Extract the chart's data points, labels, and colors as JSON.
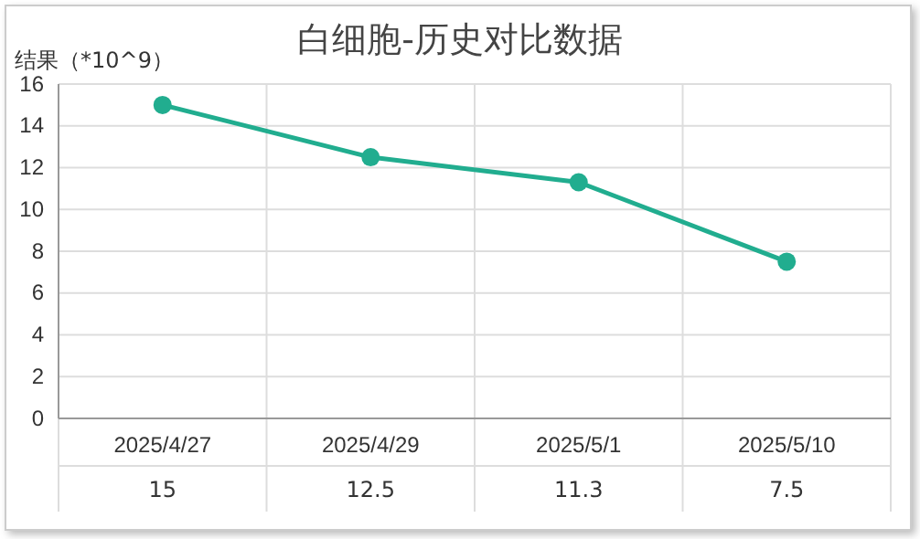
{
  "chart_data": {
    "type": "line",
    "title": "白细胞-历史对比数据",
    "ylabel": "结果（*10^9）",
    "categories": [
      "2025/4/27",
      "2025/4/29",
      "2025/5/1",
      "2025/5/10"
    ],
    "series": [
      {
        "color": "#21ad8f",
        "values": [
          15,
          12.5,
          11.3,
          7.5
        ]
      }
    ],
    "ylim": [
      0,
      16
    ],
    "yticks": [
      0,
      2,
      4,
      6,
      8,
      10,
      12,
      14,
      16
    ],
    "grid": true,
    "marker": "circle",
    "line_style": "solid",
    "data_labels": true
  }
}
